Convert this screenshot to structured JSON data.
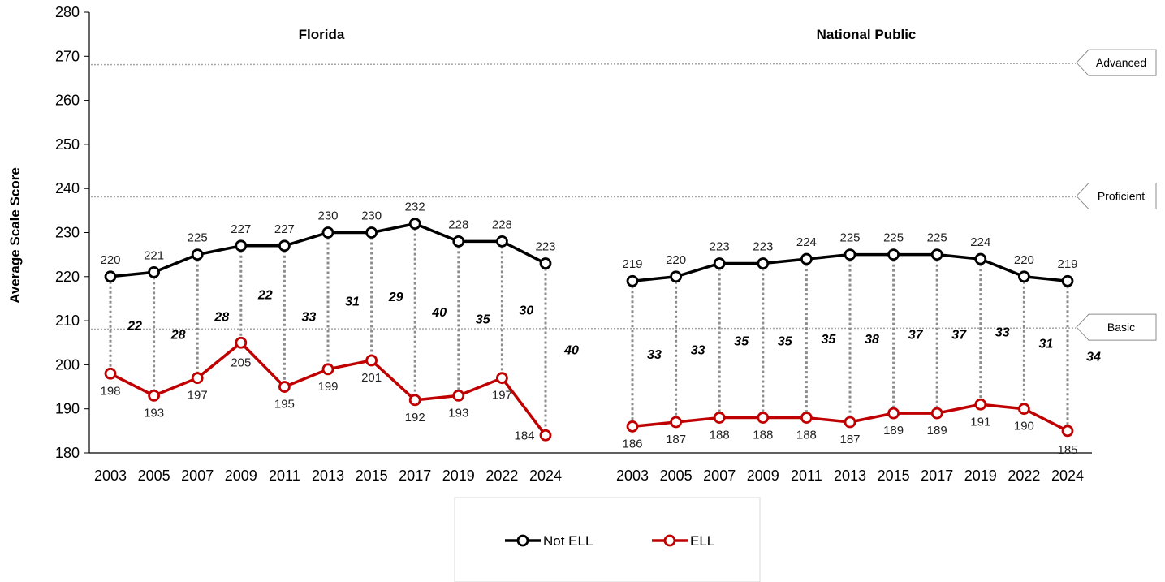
{
  "chart_data": {
    "type": "line",
    "ylabel": "Average Scale Score",
    "ylim": [
      180,
      280
    ],
    "yticks": [
      180,
      190,
      200,
      210,
      220,
      230,
      240,
      250,
      260,
      270,
      280
    ],
    "grid": false,
    "legend_position": "bottom",
    "achievement_levels": [
      {
        "name": "Advanced",
        "value": 268
      },
      {
        "name": "Proficient",
        "value": 238
      },
      {
        "name": "Basic",
        "value": 208
      }
    ],
    "series_styles": {
      "Not ELL": {
        "color": "#000000"
      },
      "ELL": {
        "color": "#c00000"
      }
    },
    "legend": [
      "Not ELL",
      "ELL"
    ],
    "panels": [
      {
        "title": "Florida",
        "categories": [
          "2003",
          "2005",
          "2007",
          "2009",
          "2011",
          "2013",
          "2015",
          "2017",
          "2019",
          "2022",
          "2024"
        ],
        "series": [
          {
            "name": "Not ELL",
            "values": [
              220,
              221,
              225,
              227,
              227,
              230,
              230,
              232,
              228,
              228,
              223
            ]
          },
          {
            "name": "ELL",
            "values": [
              198,
              193,
              197,
              205,
              195,
              199,
              201,
              192,
              193,
              197,
              184
            ]
          }
        ],
        "gaps": [
          22,
          28,
          28,
          22,
          33,
          31,
          29,
          40,
          35,
          30,
          40
        ]
      },
      {
        "title": "National Public",
        "categories": [
          "2003",
          "2005",
          "2007",
          "2009",
          "2011",
          "2013",
          "2015",
          "2017",
          "2019",
          "2022",
          "2024"
        ],
        "series": [
          {
            "name": "Not ELL",
            "values": [
              219,
              220,
              223,
              223,
              224,
              225,
              225,
              225,
              224,
              220,
              219
            ]
          },
          {
            "name": "ELL",
            "values": [
              186,
              187,
              188,
              188,
              188,
              187,
              189,
              189,
              191,
              190,
              185
            ]
          }
        ],
        "gaps": [
          33,
          33,
          35,
          35,
          35,
          38,
          37,
          37,
          33,
          31,
          34
        ]
      }
    ]
  }
}
